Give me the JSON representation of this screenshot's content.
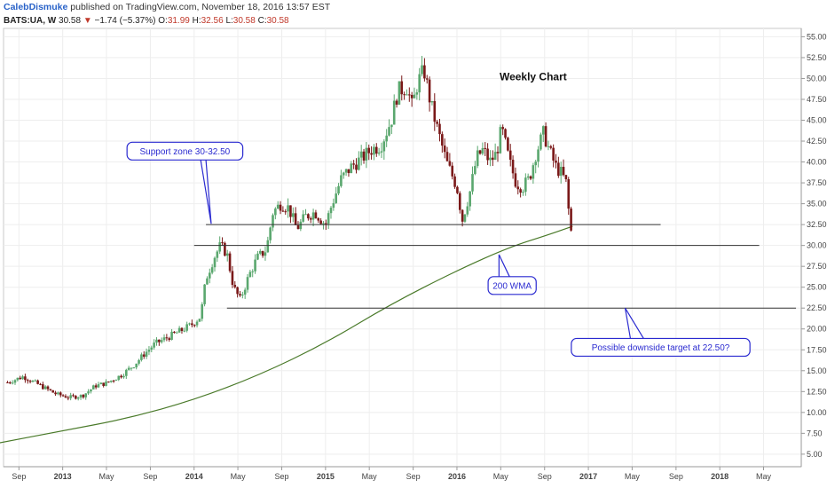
{
  "header": {
    "author": "CalebDismuke",
    "published": " published on TradingView.com, November 18, 2016 13:57 EST"
  },
  "quote": {
    "symbol": "BATS:UA, W",
    "last": "30.58",
    "arrow": "▼",
    "change": "−1.74 (−5.37%)",
    "o_label": "O:",
    "o": "31.99",
    "h_label": "H:",
    "h": "32.56",
    "l_label": "L:",
    "l": "30.58",
    "c_label": "C:",
    "c": "30.58"
  },
  "colors": {
    "up": "#5aa76e",
    "down": "#7a1818",
    "wma": "#4a7a2a",
    "annotation": "#2a2ad0",
    "level": "#333333"
  },
  "chart_data": {
    "type": "candlestick",
    "title": "Weekly Chart",
    "y_ticks": [
      "55.00",
      "52.50",
      "50.00",
      "47.50",
      "45.00",
      "42.50",
      "40.00",
      "37.50",
      "35.00",
      "32.50",
      "30.00",
      "27.50",
      "25.00",
      "22.50",
      "20.00",
      "17.50",
      "15.00",
      "12.50",
      "10.00",
      "7.50",
      "5.00"
    ],
    "ylim": [
      3.5,
      56
    ],
    "x_ticks": [
      {
        "label": "Sep",
        "t": 2012.667
      },
      {
        "label": "2013",
        "t": 2013.0,
        "year": true
      },
      {
        "label": "May",
        "t": 2013.333
      },
      {
        "label": "Sep",
        "t": 2013.667
      },
      {
        "label": "2014",
        "t": 2014.0,
        "year": true
      },
      {
        "label": "May",
        "t": 2014.333
      },
      {
        "label": "Sep",
        "t": 2014.667
      },
      {
        "label": "2015",
        "t": 2015.0,
        "year": true
      },
      {
        "label": "May",
        "t": 2015.333
      },
      {
        "label": "Sep",
        "t": 2015.667
      },
      {
        "label": "2016",
        "t": 2016.0,
        "year": true
      },
      {
        "label": "May",
        "t": 2016.333
      },
      {
        "label": "Sep",
        "t": 2016.667
      },
      {
        "label": "2017",
        "t": 2017.0,
        "year": true
      },
      {
        "label": "May",
        "t": 2017.333
      },
      {
        "label": "Sep",
        "t": 2017.667
      },
      {
        "label": "2018",
        "t": 2018.0,
        "year": true
      },
      {
        "label": "May",
        "t": 2018.333
      }
    ],
    "xlim": [
      2012.55,
      2018.62
    ],
    "price_path": [
      [
        2012.58,
        13.6
      ],
      [
        2012.7,
        14.3
      ],
      [
        2012.82,
        13.3
      ],
      [
        2012.95,
        12.2
      ],
      [
        2013.05,
        11.8
      ],
      [
        2013.15,
        12.0
      ],
      [
        2013.25,
        13.2
      ],
      [
        2013.33,
        13.5
      ],
      [
        2013.45,
        14.5
      ],
      [
        2013.55,
        15.8
      ],
      [
        2013.62,
        17.0
      ],
      [
        2013.7,
        18.2
      ],
      [
        2013.8,
        19.0
      ],
      [
        2013.9,
        19.8
      ],
      [
        2013.98,
        20.5
      ],
      [
        2014.05,
        21.5
      ],
      [
        2014.09,
        26.0
      ],
      [
        2014.15,
        28.5
      ],
      [
        2014.2,
        30.0
      ],
      [
        2014.25,
        29.0
      ],
      [
        2014.3,
        25.0
      ],
      [
        2014.35,
        23.5
      ],
      [
        2014.42,
        26.5
      ],
      [
        2014.48,
        28.5
      ],
      [
        2014.55,
        29.5
      ],
      [
        2014.6,
        34.0
      ],
      [
        2014.66,
        35.0
      ],
      [
        2014.72,
        34.5
      ],
      [
        2014.78,
        32.0
      ],
      [
        2014.85,
        33.5
      ],
      [
        2014.92,
        34.0
      ],
      [
        2015.0,
        32.5
      ],
      [
        2015.05,
        35.0
      ],
      [
        2015.12,
        38.0
      ],
      [
        2015.2,
        39.5
      ],
      [
        2015.28,
        40.5
      ],
      [
        2015.35,
        41.5
      ],
      [
        2015.42,
        42.0
      ],
      [
        2015.5,
        45.0
      ],
      [
        2015.55,
        48.5
      ],
      [
        2015.62,
        49.0
      ],
      [
        2015.66,
        46.5
      ],
      [
        2015.7,
        49.5
      ],
      [
        2015.75,
        51.0
      ],
      [
        2015.8,
        47.0
      ],
      [
        2015.85,
        44.0
      ],
      [
        2015.92,
        40.0
      ],
      [
        2016.0,
        37.0
      ],
      [
        2016.04,
        33.0
      ],
      [
        2016.1,
        36.5
      ],
      [
        2016.15,
        40.5
      ],
      [
        2016.2,
        41.5
      ],
      [
        2016.25,
        40.0
      ],
      [
        2016.3,
        41.0
      ],
      [
        2016.34,
        44.0
      ],
      [
        2016.4,
        40.0
      ],
      [
        2016.45,
        37.5
      ],
      [
        2016.5,
        37.0
      ],
      [
        2016.55,
        38.0
      ],
      [
        2016.6,
        41.0
      ],
      [
        2016.66,
        43.5
      ],
      [
        2016.7,
        41.5
      ],
      [
        2016.75,
        39.5
      ],
      [
        2016.8,
        38.5
      ],
      [
        2016.83,
        37.5
      ],
      [
        2016.86,
        32.5
      ],
      [
        2016.88,
        30.58
      ]
    ],
    "wma_path": [
      [
        2012.5,
        6.3
      ],
      [
        2013.0,
        7.8
      ],
      [
        2013.5,
        9.3
      ],
      [
        2014.0,
        11.5
      ],
      [
        2014.5,
        14.5
      ],
      [
        2015.0,
        18.3
      ],
      [
        2015.5,
        23.0
      ],
      [
        2016.0,
        27.0
      ],
      [
        2016.4,
        29.8
      ],
      [
        2016.7,
        31.3
      ],
      [
        2016.88,
        32.3
      ]
    ],
    "levels": [
      {
        "name": "support-upper",
        "y": 32.5,
        "t0": 2014.09,
        "t1": 2017.55
      },
      {
        "name": "support-lower",
        "y": 30.0,
        "t0": 2014.0,
        "t1": 2018.3
      },
      {
        "name": "downside-target",
        "y": 22.5,
        "t0": 2014.25,
        "t1": 2018.58
      }
    ],
    "annotations": [
      {
        "id": "support",
        "text": "Support zone 30-32.50",
        "point": [
          2014.13,
          32.6
        ]
      },
      {
        "id": "wma",
        "text": "200 WMA",
        "point": [
          2016.32,
          28.9
        ]
      },
      {
        "id": "target",
        "text": "Possible downside target at 22.50?",
        "point": [
          2017.28,
          22.5
        ]
      }
    ]
  }
}
